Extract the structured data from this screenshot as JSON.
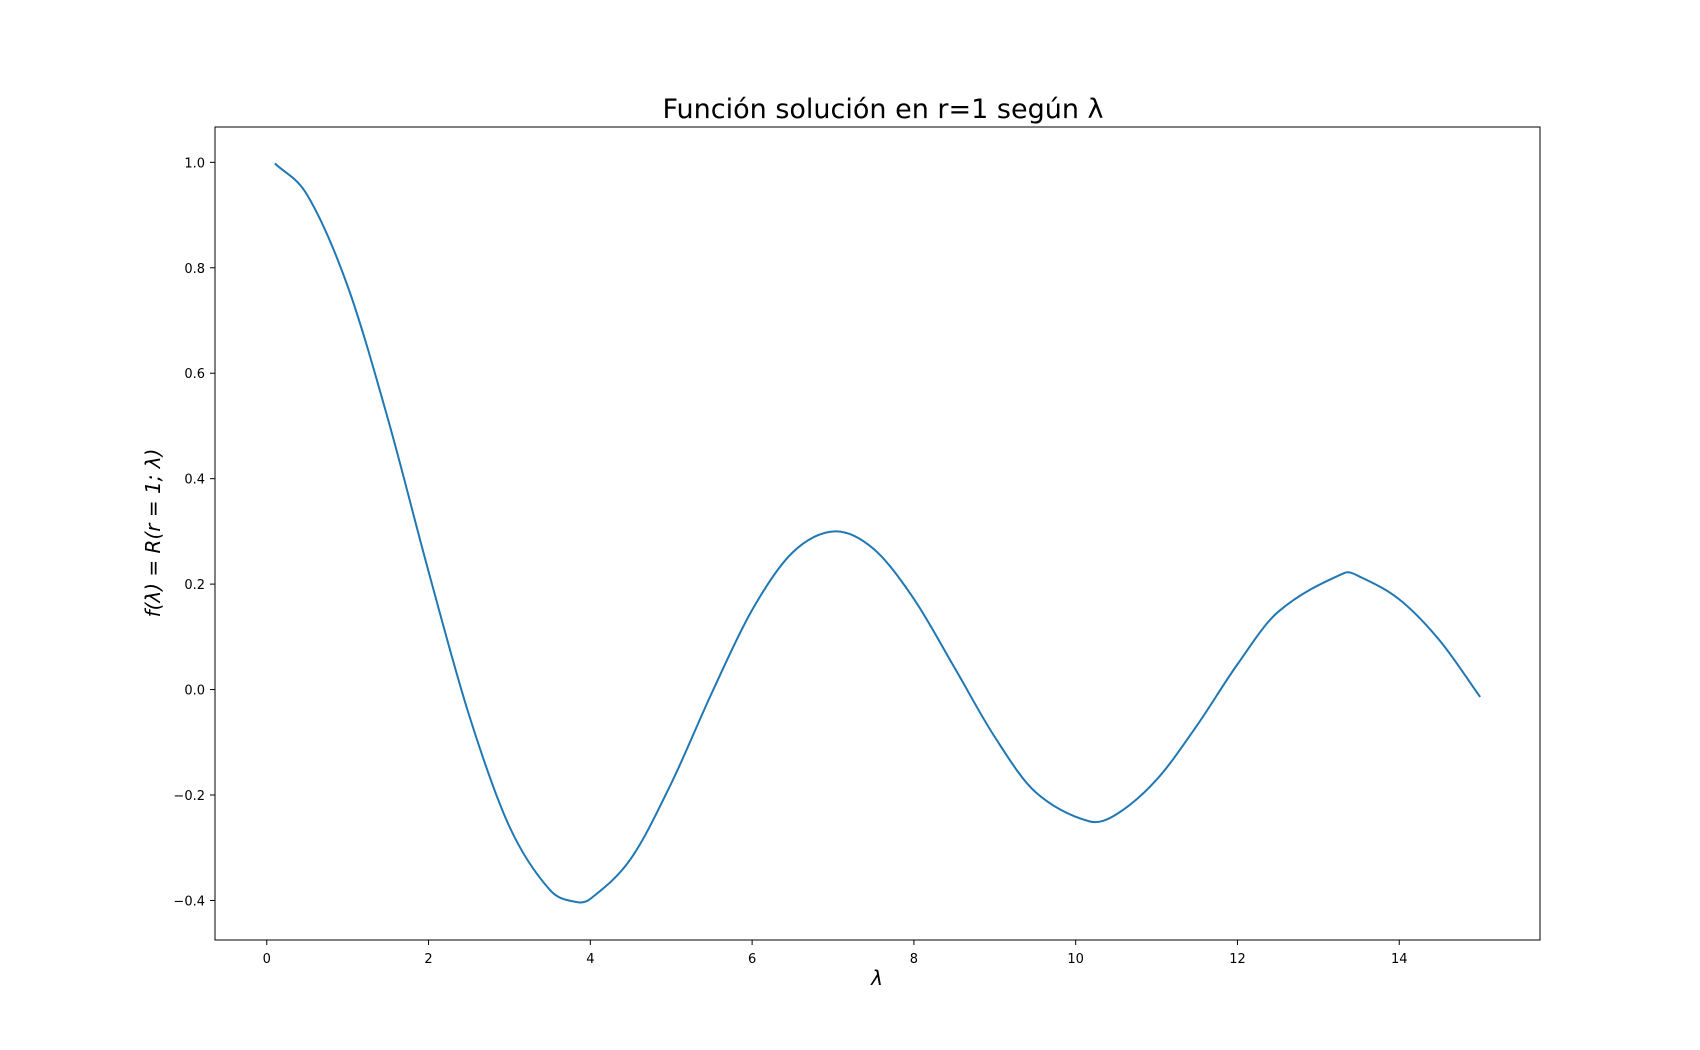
{
  "chart_data": {
    "type": "line",
    "title": "Función solución en r=1 según λ",
    "xlabel": "λ",
    "ylabel": "f(λ) = R(r = 1; λ)",
    "xlim": [
      -0.64,
      15.74
    ],
    "ylim": [
      -0.475,
      1.067
    ],
    "grid": false,
    "legend": "none",
    "x_ticks": [
      0,
      2,
      4,
      6,
      8,
      10,
      12,
      14
    ],
    "x_tick_labels": [
      "0",
      "2",
      "4",
      "6",
      "8",
      "10",
      "12",
      "14"
    ],
    "y_ticks": [
      -0.4,
      -0.2,
      0.0,
      0.2,
      0.4,
      0.6,
      0.8,
      1.0
    ],
    "y_tick_labels": [
      "−0.4",
      "−0.2",
      "0.0",
      "0.2",
      "0.4",
      "0.6",
      "0.8",
      "1.0"
    ],
    "line_color": "#1f77b4",
    "series": [
      {
        "x": [
          0.1,
          0.5,
          1.0,
          1.5,
          2.0,
          2.5,
          3.0,
          3.5,
          3.83,
          4.0,
          4.5,
          5.0,
          5.5,
          6.0,
          6.5,
          7.02,
          7.5,
          8.0,
          8.5,
          9.0,
          9.5,
          10.17,
          10.5,
          11.0,
          11.5,
          12.0,
          12.5,
          13.32,
          13.5,
          14.0,
          14.5,
          15.0
        ],
        "values": [
          0.998,
          0.938,
          0.765,
          0.512,
          0.224,
          -0.048,
          -0.26,
          -0.38,
          -0.403,
          -0.397,
          -0.321,
          -0.178,
          -0.007,
          0.151,
          0.26,
          0.3,
          0.267,
          0.172,
          0.042,
          -0.09,
          -0.194,
          -0.25,
          -0.237,
          -0.171,
          -0.068,
          0.048,
          0.147,
          0.221,
          0.215,
          0.171,
          0.093,
          -0.014
        ]
      }
    ]
  }
}
